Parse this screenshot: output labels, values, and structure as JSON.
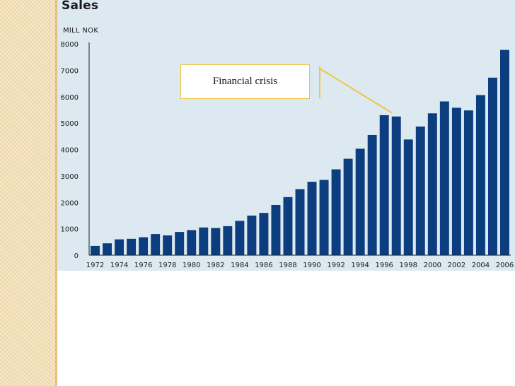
{
  "chart_data": {
    "type": "bar",
    "title": "Sales",
    "ylabel": "MILL NOK",
    "xlabel": "",
    "ylim": [
      0,
      8000
    ],
    "yticks": [
      "0",
      "1000",
      "2000",
      "3000",
      "4000",
      "5000",
      "6000",
      "7000",
      "8000"
    ],
    "xtick_labels": [
      "1972",
      "1974",
      "1976",
      "1978",
      "1980",
      "1982",
      "1984",
      "1986",
      "1988",
      "1990",
      "1992",
      "1994",
      "1996",
      "1998",
      "2000",
      "2002",
      "2004",
      "2006"
    ],
    "categories": [
      "1972",
      "1973",
      "1974",
      "1975",
      "1976",
      "1977",
      "1978",
      "1979",
      "1980",
      "1981",
      "1982",
      "1983",
      "1984",
      "1985",
      "1986",
      "1987",
      "1988",
      "1989",
      "1990",
      "1991",
      "1992",
      "1993",
      "1994",
      "1995",
      "1996",
      "1997",
      "1998",
      "1999",
      "2000",
      "2001",
      "2002",
      "2003",
      "2004",
      "2005",
      "2006"
    ],
    "values": [
      350,
      450,
      600,
      620,
      680,
      800,
      750,
      880,
      950,
      1050,
      1030,
      1100,
      1300,
      1500,
      1600,
      1900,
      2200,
      2500,
      2780,
      2850,
      3250,
      3650,
      4030,
      4550,
      5300,
      5250,
      4380,
      4870,
      5370,
      5820,
      5580,
      5480,
      6060,
      6720,
      7770
    ],
    "bar_color": "#0b3d7f",
    "annotation": {
      "text": "Financial crisis",
      "points_to": "1997",
      "box_border_color": "#f1c232",
      "leader_color": "#f1c232"
    }
  },
  "colors": {
    "panel_background": "#dde9f1",
    "side_strip": "#f3dfb4"
  }
}
